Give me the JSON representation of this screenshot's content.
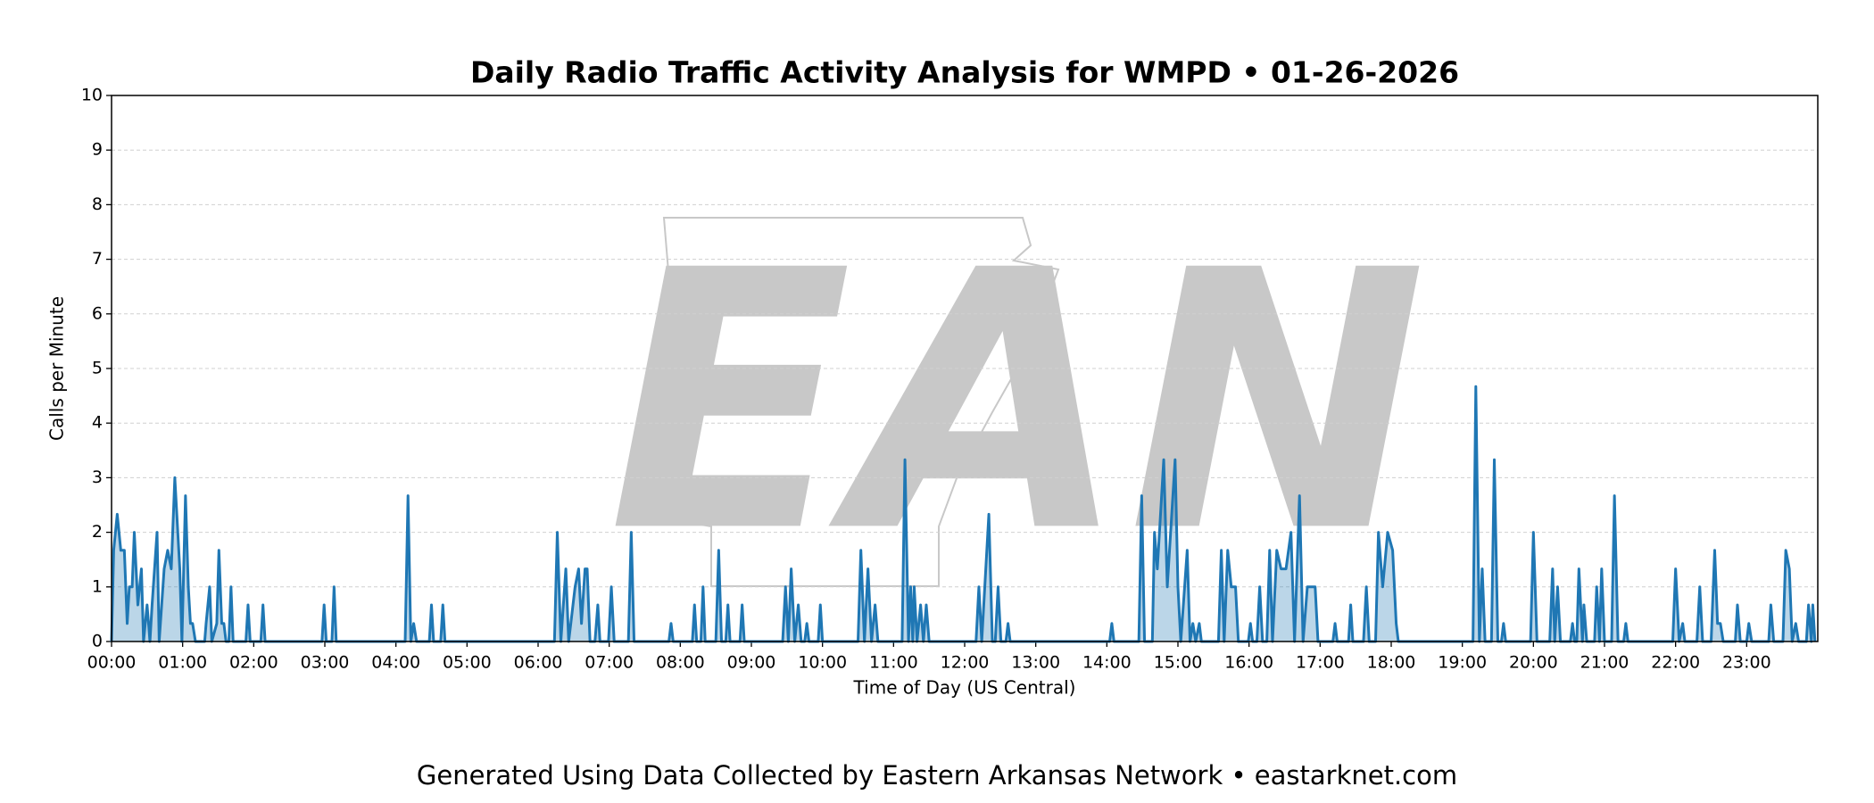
{
  "chart_data": {
    "type": "area-line",
    "title": "Daily Radio Traffic Activity Analysis for WMPD • 01-26-2026",
    "xlabel": "Time of Day (US Central)",
    "ylabel": "Calls per Minute",
    "footer": "Generated Using Data Collected by Eastern Arkansas Network • eastarknet.com",
    "watermark": "EAN",
    "color": "#1f77b4",
    "grid": true,
    "xlim": [
      0,
      24
    ],
    "ylim": [
      0,
      10
    ],
    "yticks": [
      0,
      1,
      2,
      3,
      4,
      5,
      6,
      7,
      8,
      9,
      10
    ],
    "xticks": [
      {
        "value": 0,
        "label": "00:00"
      },
      {
        "value": 1,
        "label": "01:00"
      },
      {
        "value": 2,
        "label": "02:00"
      },
      {
        "value": 3,
        "label": "03:00"
      },
      {
        "value": 4,
        "label": "04:00"
      },
      {
        "value": 5,
        "label": "05:00"
      },
      {
        "value": 6,
        "label": "06:00"
      },
      {
        "value": 7,
        "label": "07:00"
      },
      {
        "value": 8,
        "label": "08:00"
      },
      {
        "value": 9,
        "label": "09:00"
      },
      {
        "value": 10,
        "label": "10:00"
      },
      {
        "value": 11,
        "label": "11:00"
      },
      {
        "value": 12,
        "label": "12:00"
      },
      {
        "value": 13,
        "label": "13:00"
      },
      {
        "value": 14,
        "label": "14:00"
      },
      {
        "value": 15,
        "label": "15:00"
      },
      {
        "value": 16,
        "label": "16:00"
      },
      {
        "value": 17,
        "label": "17:00"
      },
      {
        "value": 18,
        "label": "18:00"
      },
      {
        "value": 19,
        "label": "19:00"
      },
      {
        "value": 20,
        "label": "20:00"
      },
      {
        "value": 21,
        "label": "21:00"
      },
      {
        "value": 22,
        "label": "22:00"
      },
      {
        "value": 23,
        "label": "23:00"
      }
    ],
    "x": [
      0,
      0.03,
      0.08,
      0.13,
      0.18,
      0.22,
      0.25,
      0.29,
      0.32,
      0.37,
      0.42,
      0.45,
      0.5,
      0.54,
      0.57,
      0.64,
      0.67,
      0.74,
      0.79,
      0.84,
      0.89,
      0.96,
      0.99,
      1.04,
      1.08,
      1.11,
      1.14,
      1.18,
      1.31,
      1.33,
      1.38,
      1.41,
      1.48,
      1.51,
      1.55,
      1.58,
      1.61,
      1.65,
      1.68,
      1.71,
      1.89,
      1.92,
      1.95,
      2.1,
      2.13,
      2.16,
      2.96,
      2.99,
      3.02,
      3.1,
      3.13,
      3.16,
      4.13,
      4.17,
      4.21,
      4.25,
      4.29,
      4.47,
      4.5,
      4.53,
      4.63,
      4.66,
      4.69,
      6.23,
      6.27,
      6.32,
      6.39,
      6.43,
      6.46,
      6.52,
      6.57,
      6.61,
      6.66,
      6.69,
      6.73,
      6.8,
      6.84,
      6.87,
      6.99,
      7.03,
      7.07,
      7.27,
      7.31,
      7.35,
      7.84,
      7.87,
      7.9,
      8.17,
      8.2,
      8.23,
      8.29,
      8.32,
      8.35,
      8.5,
      8.54,
      8.58,
      8.64,
      8.67,
      8.7,
      8.84,
      8.87,
      8.9,
      9.44,
      9.48,
      9.52,
      9.56,
      9.61,
      9.66,
      9.7,
      9.75,
      9.78,
      9.81,
      9.94,
      9.97,
      10,
      10.5,
      10.54,
      10.59,
      10.64,
      10.69,
      10.74,
      10.78,
      11.12,
      11.16,
      11.21,
      11.24,
      11.27,
      11.29,
      11.33,
      11.38,
      11.42,
      11.46,
      11.5,
      12.16,
      12.2,
      12.24,
      12.34,
      12.39,
      12.43,
      12.47,
      12.51,
      12.58,
      12.61,
      12.64,
      14.04,
      14.07,
      14.1,
      14.45,
      14.49,
      14.53,
      14.64,
      14.67,
      14.71,
      14.8,
      14.85,
      14.96,
      15,
      15.04,
      15.13,
      15.17,
      15.21,
      15.25,
      15.3,
      15.33,
      15.57,
      15.61,
      15.65,
      15.7,
      15.75,
      15.81,
      15.85,
      15.99,
      16.02,
      16.05,
      16.11,
      16.15,
      16.19,
      16.25,
      16.29,
      16.33,
      16.39,
      16.45,
      16.52,
      16.59,
      16.64,
      16.71,
      16.76,
      16.82,
      16.88,
      16.93,
      16.97,
      17.18,
      17.21,
      17.24,
      17.4,
      17.43,
      17.46,
      17.61,
      17.65,
      17.69,
      17.78,
      17.82,
      17.88,
      17.95,
      18.02,
      18.07,
      18.1,
      19.15,
      19.19,
      19.24,
      19.28,
      19.32,
      19.41,
      19.45,
      19.5,
      19.55,
      19.58,
      19.61,
      19.96,
      20,
      20.05,
      20.23,
      20.27,
      20.3,
      20.34,
      20.38,
      20.52,
      20.55,
      20.58,
      20.61,
      20.64,
      20.69,
      20.71,
      20.75,
      20.86,
      20.89,
      20.93,
      20.96,
      21,
      21.1,
      21.14,
      21.19,
      21.27,
      21.3,
      21.33,
      21.96,
      22,
      22.05,
      22.1,
      22.13,
      22.3,
      22.34,
      22.38,
      22.5,
      22.55,
      22.59,
      22.63,
      22.67,
      22.84,
      22.87,
      22.91,
      23,
      23.03,
      23.07,
      23.31,
      23.34,
      23.38,
      23.51,
      23.55,
      23.6,
      23.64,
      23.69,
      23.73,
      23.84,
      23.87,
      23.91,
      23.93,
      23.96
    ],
    "values": [
      0,
      1.67,
      2.33,
      1.67,
      1.67,
      0.33,
      1,
      1,
      2,
      0.67,
      1.33,
      0,
      0.67,
      0,
      0.67,
      2,
      0,
      1.33,
      1.67,
      1.33,
      3,
      1.33,
      0,
      2.67,
      1,
      0.33,
      0.33,
      0,
      0,
      0.33,
      1,
      0,
      0.33,
      1.67,
      0.33,
      0.33,
      0,
      0,
      1,
      0,
      0,
      0.67,
      0,
      0,
      0.67,
      0,
      0,
      0.67,
      0,
      0,
      1,
      0,
      0,
      2.67,
      0,
      0.33,
      0,
      0,
      0.67,
      0,
      0,
      0.67,
      0,
      0,
      2,
      0,
      1.33,
      0,
      0.33,
      1,
      1.33,
      0.33,
      1.33,
      1.33,
      0,
      0,
      0.67,
      0,
      0,
      1,
      0,
      0,
      2,
      0,
      0,
      0.33,
      0,
      0,
      0.67,
      0,
      0,
      1,
      0,
      0,
      1.67,
      0,
      0,
      0.67,
      0,
      0,
      0.67,
      0,
      0,
      1,
      0,
      1.33,
      0,
      0.67,
      0,
      0,
      0.33,
      0,
      0,
      0.67,
      0,
      0,
      1.67,
      0,
      1.33,
      0,
      0.67,
      0,
      0,
      3.33,
      0,
      1,
      0,
      1,
      0,
      0.67,
      0,
      0.67,
      0,
      0,
      1,
      0,
      2.33,
      0,
      0,
      1,
      0,
      0,
      0.33,
      0,
      0,
      0.33,
      0,
      0,
      2.67,
      0,
      0,
      2,
      1.33,
      3.33,
      1,
      3.33,
      1,
      0,
      1.67,
      0,
      0.33,
      0,
      0.33,
      0,
      0,
      1.67,
      0,
      1.67,
      1,
      1,
      0,
      0,
      0.33,
      0,
      0,
      1,
      0,
      0,
      1.67,
      0,
      1.67,
      1.33,
      1.33,
      2,
      0,
      2.67,
      0,
      1,
      1,
      1,
      0,
      0,
      0.33,
      0,
      0,
      0.67,
      0,
      0,
      1,
      0,
      0,
      2,
      1,
      2,
      1.67,
      0.33,
      0,
      0,
      4.67,
      0,
      1.33,
      0,
      0,
      3.33,
      0,
      0,
      0.33,
      0,
      0,
      2,
      0,
      0,
      1.33,
      0,
      1,
      0,
      0,
      0.33,
      0,
      0,
      1.33,
      0,
      0.67,
      0,
      0,
      1,
      0,
      1.33,
      0,
      0,
      2.67,
      0,
      0,
      0.33,
      0,
      0,
      1.33,
      0,
      0.33,
      0,
      0,
      1,
      0,
      0,
      1.67,
      0.33,
      0.33,
      0,
      0,
      0.67,
      0,
      0,
      0.33,
      0,
      0,
      0.67,
      0,
      0,
      1.67,
      1.33,
      0,
      0.33,
      0,
      0,
      0.67,
      0,
      0.67,
      0
    ]
  }
}
